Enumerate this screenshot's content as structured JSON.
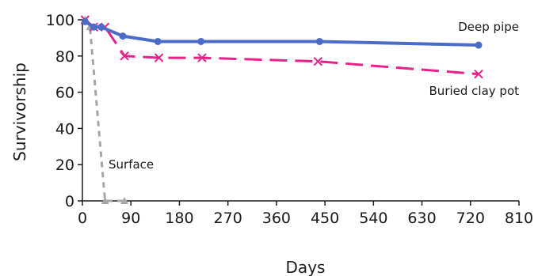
{
  "chart_data": {
    "type": "line",
    "xlabel": "Days",
    "ylabel": "Survivorship",
    "xlim": [
      0,
      810
    ],
    "ylim": [
      0,
      100
    ],
    "xticks": [
      0,
      90,
      180,
      270,
      360,
      450,
      540,
      630,
      720,
      810
    ],
    "yticks": [
      0,
      20,
      40,
      60,
      80,
      100
    ],
    "grid": false,
    "legend": "inline-labels",
    "series": [
      {
        "name": "Deep pipe",
        "color": "#4a6bc8",
        "line_style": "solid",
        "marker": "circle",
        "x": [
          5,
          21,
          35,
          75,
          140,
          220,
          440,
          735
        ],
        "y": [
          99,
          96,
          96,
          91,
          88,
          88,
          88,
          86
        ]
      },
      {
        "name": "Buried clay pot",
        "color": "#e8208a",
        "line_style": "dashed",
        "marker": "x",
        "x": [
          5,
          21,
          42,
          78,
          142,
          222,
          437,
          735
        ],
        "y": [
          100,
          96,
          96,
          80,
          79,
          79,
          77,
          70
        ]
      },
      {
        "name": "Surface",
        "color": "#a6a6a6",
        "line_style": "dashed",
        "marker": "triangle",
        "x": [
          5,
          14,
          42,
          78
        ],
        "y": [
          100,
          96,
          0,
          0
        ]
      }
    ]
  }
}
